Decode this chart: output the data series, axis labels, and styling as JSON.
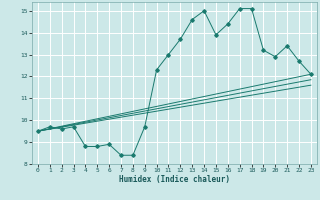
{
  "xlabel": "Humidex (Indice chaleur)",
  "ylabel": "",
  "bg_color": "#cce8e8",
  "grid_color": "#ffffff",
  "line_color": "#1a7a6e",
  "xlim": [
    -0.5,
    23.5
  ],
  "ylim": [
    8,
    15.4
  ],
  "xticks": [
    0,
    1,
    2,
    3,
    4,
    5,
    6,
    7,
    8,
    9,
    10,
    11,
    12,
    13,
    14,
    15,
    16,
    17,
    18,
    19,
    20,
    21,
    22,
    23
  ],
  "yticks": [
    8,
    9,
    10,
    11,
    12,
    13,
    14,
    15
  ],
  "main_x": [
    0,
    1,
    2,
    3,
    4,
    5,
    6,
    7,
    8,
    9,
    10,
    11,
    12,
    13,
    14,
    15,
    16,
    17,
    18,
    19,
    20,
    21,
    22,
    23
  ],
  "main_y": [
    9.5,
    9.7,
    9.6,
    9.7,
    8.8,
    8.8,
    8.9,
    8.4,
    8.4,
    9.7,
    12.3,
    13.0,
    13.7,
    14.6,
    15.0,
    13.9,
    14.4,
    15.1,
    15.1,
    13.2,
    12.9,
    13.4,
    12.7,
    12.1
  ],
  "line2_x": [
    0,
    23
  ],
  "line2_y": [
    9.5,
    12.1
  ],
  "line3_x": [
    0,
    23
  ],
  "line3_y": [
    9.5,
    11.6
  ],
  "line4_x": [
    0,
    23
  ],
  "line4_y": [
    9.5,
    11.85
  ]
}
